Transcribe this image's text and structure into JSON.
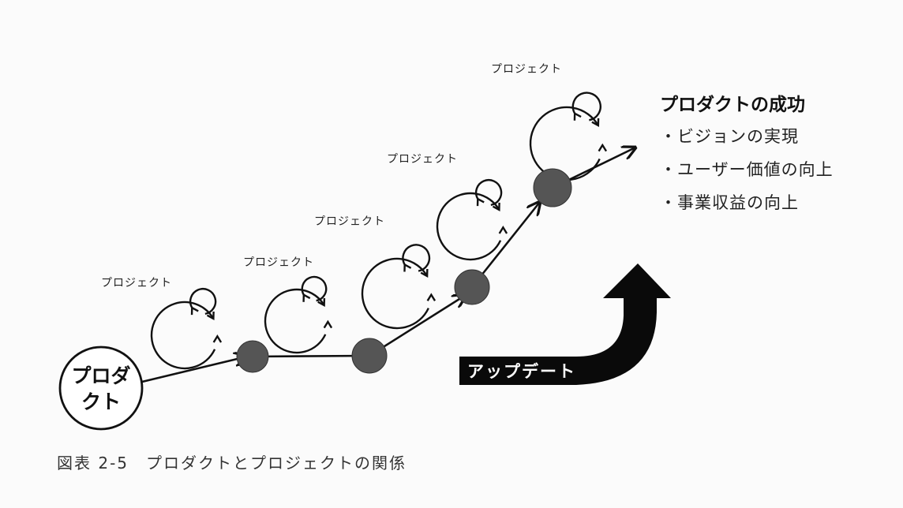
{
  "product_node": {
    "line1": "プロダ",
    "line2": "クト"
  },
  "project_label": "プロジェクト",
  "success": {
    "title": "プロダクトの成功",
    "items": [
      "・ビジョンの実現",
      "・ユーザー価値の向上",
      "・事業収益の向上"
    ]
  },
  "update_label": "アップデート",
  "caption": "図表 2-5　プロダクトとプロジェクトの関係",
  "colors": {
    "milestone": "#555555",
    "line": "#111111",
    "arrow_fill": "#0a0a0a"
  }
}
